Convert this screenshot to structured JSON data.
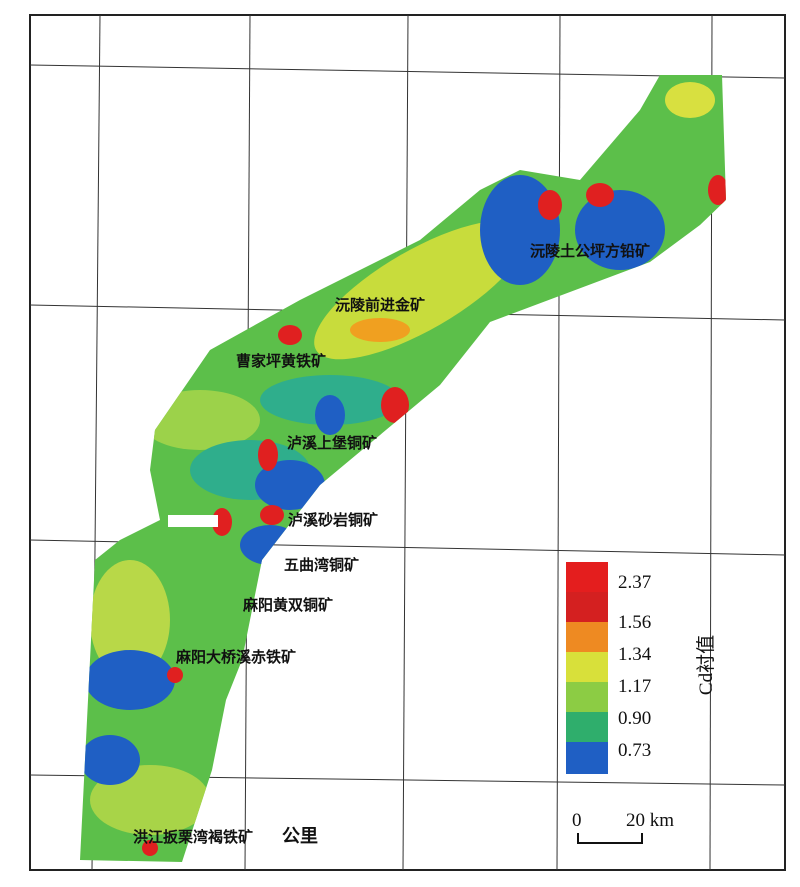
{
  "map": {
    "labels": [
      "沅陵土公坪方铅矿",
      "沅陵前进金矿",
      "曹家坪黄铁矿",
      "泸溪上堡铜矿",
      "泸溪砂岩铜矿",
      "五曲湾铜矿",
      "麻阳黄双铜矿",
      "麻阳大桥溪赤铁矿",
      "洪江扳栗湾褐铁矿",
      "公里"
    ]
  },
  "legend": {
    "title": "Cd衬值",
    "values": [
      "2.37",
      "1.56",
      "1.34",
      "1.17",
      "0.90",
      "0.73"
    ]
  },
  "scale_bar": {
    "start": "0",
    "end": "20 km"
  }
}
